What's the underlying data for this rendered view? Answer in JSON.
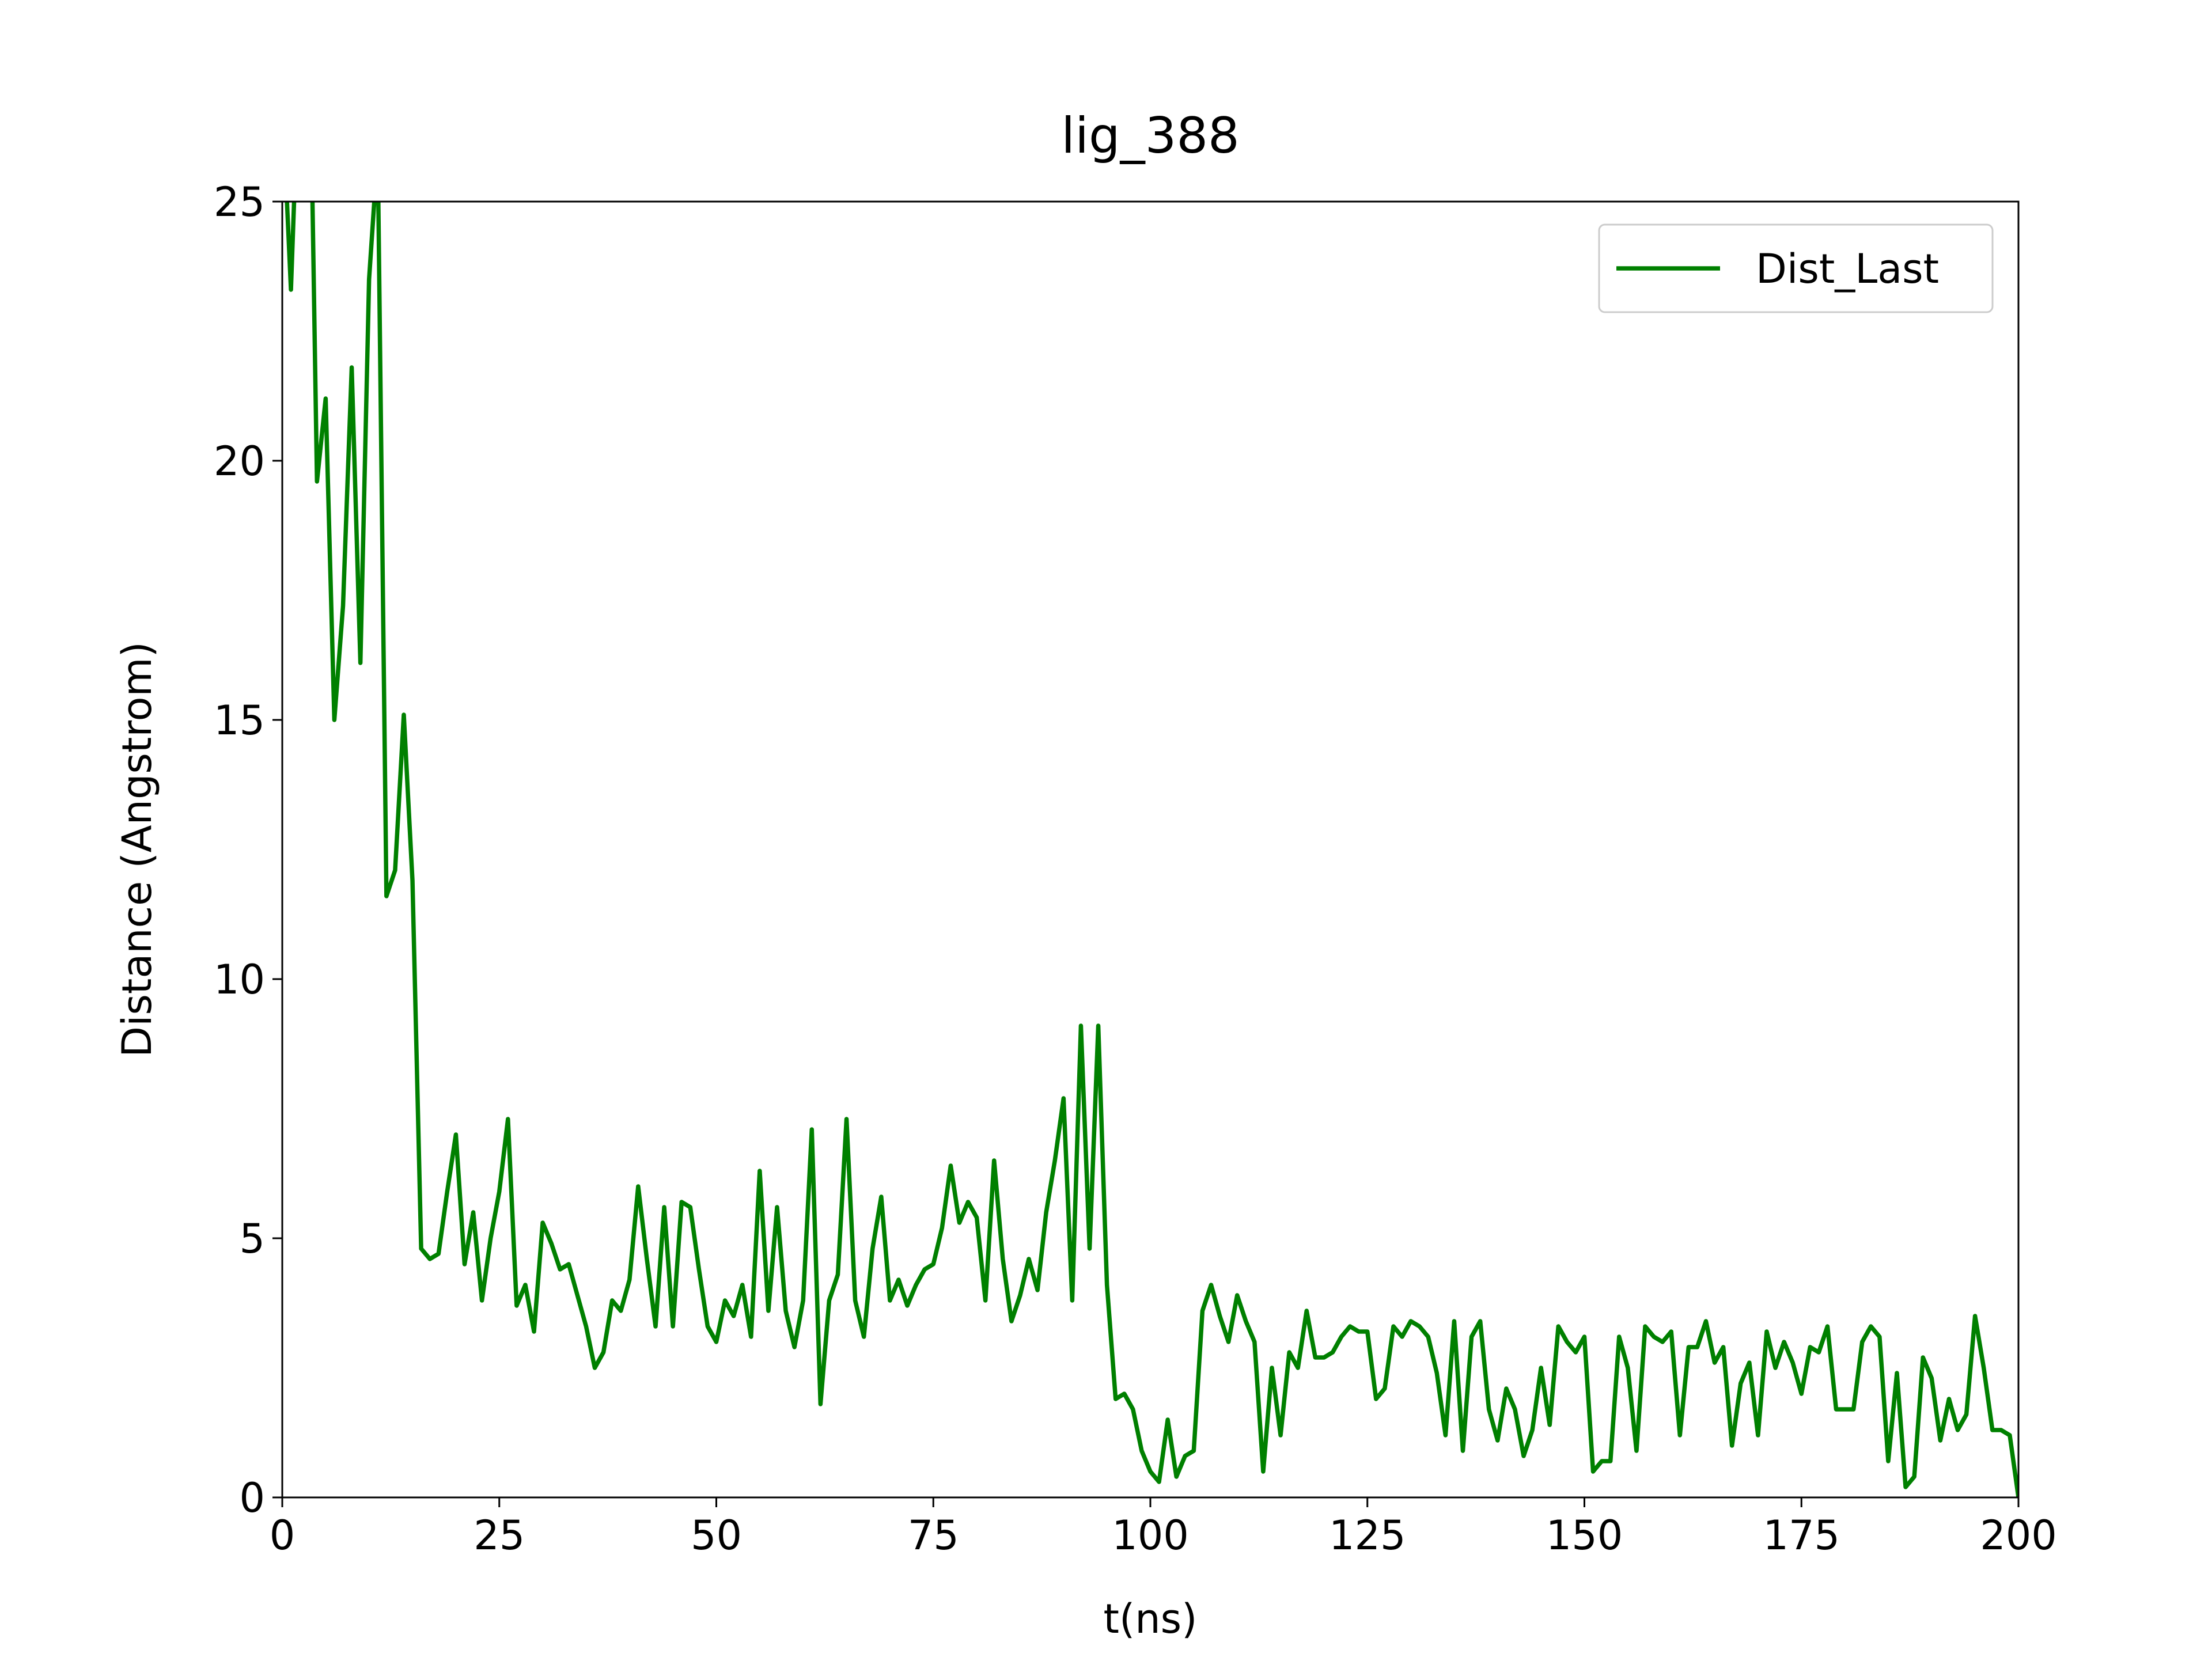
{
  "chart_data": {
    "type": "line",
    "title": "lig_388",
    "x_label": "t(ns)",
    "y_label": "Distance (Angstrom)",
    "x": [
      0,
      1,
      2,
      3,
      4,
      5,
      6,
      7,
      8,
      9,
      10,
      11,
      12,
      13,
      14,
      15,
      16,
      17,
      18,
      19,
      20,
      21,
      22,
      23,
      24,
      25,
      26,
      27,
      28,
      29,
      30,
      31,
      32,
      33,
      34,
      35,
      36,
      37,
      38,
      39,
      40,
      41,
      42,
      43,
      44,
      45,
      46,
      47,
      48,
      49,
      50,
      51,
      52,
      53,
      54,
      55,
      56,
      57,
      58,
      59,
      60,
      61,
      62,
      63,
      64,
      65,
      66,
      67,
      68,
      69,
      70,
      71,
      72,
      73,
      74,
      75,
      76,
      77,
      78,
      79,
      80,
      81,
      82,
      83,
      84,
      85,
      86,
      87,
      88,
      89,
      90,
      91,
      92,
      93,
      94,
      95,
      96,
      97,
      98,
      99,
      100,
      101,
      102,
      103,
      104,
      105,
      106,
      107,
      108,
      109,
      110,
      111,
      112,
      113,
      114,
      115,
      116,
      117,
      118,
      119,
      120,
      121,
      122,
      123,
      124,
      125,
      126,
      127,
      128,
      129,
      130,
      131,
      132,
      133,
      134,
      135,
      136,
      137,
      138,
      139,
      140,
      141,
      142,
      143,
      144,
      145,
      146,
      147,
      148,
      149,
      150,
      151,
      152,
      153,
      154,
      155,
      156,
      157,
      158,
      159,
      160,
      161,
      162,
      163,
      164,
      165,
      166,
      167,
      168,
      169,
      170,
      171,
      172,
      173,
      174,
      175,
      176,
      177,
      178,
      179,
      180,
      181,
      182,
      183,
      184,
      185,
      186,
      187,
      188,
      189,
      190,
      191,
      192,
      193,
      194,
      195,
      196,
      197,
      198,
      199,
      200
    ],
    "series": [
      {
        "name": "Dist_Last",
        "color": "#008000",
        "values": [
          27,
          23.3,
          28,
          30,
          19.6,
          21.2,
          15.0,
          17.2,
          21.8,
          16.1,
          23.5,
          26,
          11.6,
          12.1,
          15.1,
          11.9,
          4.8,
          4.6,
          4.7,
          5.9,
          7.0,
          4.5,
          5.5,
          3.8,
          5.0,
          5.9,
          7.3,
          3.7,
          4.1,
          3.2,
          5.3,
          4.9,
          4.4,
          4.5,
          3.9,
          3.3,
          2.5,
          2.8,
          3.8,
          3.6,
          4.2,
          6.0,
          4.6,
          3.3,
          5.6,
          3.3,
          5.7,
          5.6,
          4.4,
          3.3,
          3.0,
          3.8,
          3.5,
          4.1,
          3.1,
          6.3,
          3.6,
          5.6,
          3.6,
          2.9,
          3.8,
          7.1,
          1.8,
          3.8,
          4.3,
          7.3,
          3.8,
          3.1,
          4.8,
          5.8,
          3.8,
          4.2,
          3.7,
          4.1,
          4.4,
          4.5,
          5.2,
          6.4,
          5.3,
          5.7,
          5.4,
          3.8,
          6.5,
          4.6,
          3.4,
          3.9,
          4.6,
          4.0,
          5.5,
          6.5,
          7.7,
          3.8,
          9.1,
          4.8,
          9.1,
          4.1,
          1.9,
          2.0,
          1.7,
          0.9,
          0.5,
          0.3,
          1.5,
          0.4,
          0.8,
          0.9,
          3.6,
          4.1,
          3.5,
          3.0,
          3.9,
          3.4,
          3.0,
          0.5,
          2.5,
          1.2,
          2.8,
          2.5,
          3.6,
          2.7,
          2.7,
          2.8,
          3.1,
          3.3,
          3.2,
          3.2,
          1.9,
          2.1,
          3.3,
          3.1,
          3.4,
          3.3,
          3.1,
          2.4,
          1.2,
          3.4,
          0.9,
          3.1,
          3.4,
          1.7,
          1.1,
          2.1,
          1.7,
          0.8,
          1.3,
          2.5,
          1.4,
          3.3,
          3.0,
          2.8,
          3.1,
          0.5,
          0.7,
          0.7,
          3.1,
          2.5,
          0.9,
          3.3,
          3.1,
          3.0,
          3.2,
          1.2,
          2.9,
          2.9,
          3.4,
          2.6,
          2.9,
          1.0,
          2.2,
          2.6,
          1.2,
          3.2,
          2.5,
          3.0,
          2.6,
          2.0,
          2.9,
          2.8,
          3.3,
          1.7,
          1.7,
          1.7,
          3.0,
          3.3,
          3.1,
          0.7,
          2.4,
          0.2,
          0.4,
          2.7,
          2.3,
          1.1,
          1.9,
          1.3,
          1.6,
          3.5,
          2.5,
          1.3,
          1.3,
          1.2,
          0.0
        ]
      }
    ],
    "xlim": [
      0,
      200
    ],
    "xticks": [
      0,
      25,
      50,
      75,
      100,
      125,
      150,
      175,
      200
    ],
    "ylim": [
      0,
      25
    ],
    "yticks": [
      0,
      5,
      10,
      15,
      20,
      25
    ],
    "grid": false,
    "legend": "upper right"
  }
}
